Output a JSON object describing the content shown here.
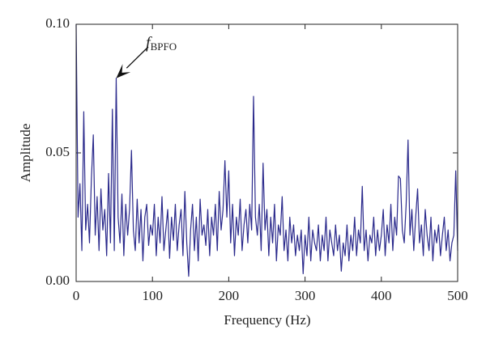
{
  "chart_data": {
    "type": "line",
    "xlabel": "Frequency (Hz)",
    "ylabel": "Amplitude",
    "xlim": [
      0,
      500
    ],
    "xticks": [
      0,
      100,
      200,
      300,
      400,
      500
    ],
    "ylim": [
      0,
      0.1
    ],
    "yticks": [
      {
        "value": 0,
        "label": "0.00"
      },
      {
        "value": 0.05,
        "label": "0.05"
      },
      {
        "value": 0.1,
        "label": "0.10"
      }
    ],
    "annotation": {
      "text": "f",
      "subscript": "BPFO",
      "x": 52.5,
      "y": 0.079
    },
    "x": [
      0,
      2.5,
      5,
      7.5,
      10,
      12.5,
      15,
      17.5,
      20,
      22.5,
      25,
      27.5,
      30,
      32.5,
      35,
      37.5,
      40,
      42.5,
      45,
      47.5,
      50,
      52.5,
      55,
      57.5,
      60,
      62.5,
      65,
      67.5,
      70,
      72.5,
      75,
      77.5,
      80,
      82.5,
      85,
      87.5,
      90,
      92.5,
      95,
      97.5,
      100,
      102.5,
      105,
      107.5,
      110,
      112.5,
      115,
      117.5,
      120,
      122.5,
      125,
      127.5,
      130,
      132.5,
      135,
      137.5,
      140,
      142.5,
      145,
      147.5,
      150,
      152.5,
      155,
      157.5,
      160,
      162.5,
      165,
      167.5,
      170,
      172.5,
      175,
      177.5,
      180,
      182.5,
      185,
      187.5,
      190,
      192.5,
      195,
      197.5,
      200,
      202.5,
      205,
      207.5,
      210,
      212.5,
      215,
      217.5,
      220,
      222.5,
      225,
      227.5,
      230,
      232.5,
      235,
      237.5,
      240,
      242.5,
      245,
      247.5,
      250,
      252.5,
      255,
      257.5,
      260,
      262.5,
      265,
      267.5,
      270,
      272.5,
      275,
      277.5,
      280,
      282.5,
      285,
      287.5,
      290,
      292.5,
      295,
      297.5,
      300,
      302.5,
      305,
      307.5,
      310,
      312.5,
      315,
      317.5,
      320,
      322.5,
      325,
      327.5,
      330,
      332.5,
      335,
      337.5,
      340,
      342.5,
      345,
      347.5,
      350,
      352.5,
      355,
      357.5,
      360,
      362.5,
      365,
      367.5,
      370,
      372.5,
      375,
      377.5,
      380,
      382.5,
      385,
      387.5,
      390,
      392.5,
      395,
      397.5,
      400,
      402.5,
      405,
      407.5,
      410,
      412.5,
      415,
      417.5,
      420,
      422.5,
      425,
      427.5,
      430,
      432.5,
      435,
      437.5,
      440,
      442.5,
      445,
      447.5,
      450,
      452.5,
      455,
      457.5,
      460,
      462.5,
      465,
      467.5,
      470,
      472.5,
      475,
      477.5,
      480,
      482.5,
      485,
      487.5,
      490,
      492.5,
      495,
      497.5,
      500
    ],
    "series": [
      {
        "color": "#2b2a8c",
        "values": [
          0.1,
          0.025,
          0.038,
          0.012,
          0.066,
          0.02,
          0.03,
          0.015,
          0.04,
          0.057,
          0.018,
          0.033,
          0.012,
          0.036,
          0.02,
          0.028,
          0.01,
          0.042,
          0.015,
          0.067,
          0.012,
          0.079,
          0.025,
          0.015,
          0.034,
          0.01,
          0.03,
          0.018,
          0.028,
          0.051,
          0.02,
          0.012,
          0.032,
          0.015,
          0.028,
          0.008,
          0.025,
          0.03,
          0.014,
          0.022,
          0.018,
          0.03,
          0.01,
          0.025,
          0.015,
          0.033,
          0.012,
          0.02,
          0.028,
          0.009,
          0.025,
          0.016,
          0.03,
          0.012,
          0.022,
          0.028,
          0.01,
          0.035,
          0.015,
          0.002,
          0.02,
          0.03,
          0.012,
          0.025,
          0.008,
          0.032,
          0.018,
          0.022,
          0.014,
          0.028,
          0.01,
          0.025,
          0.018,
          0.03,
          0.012,
          0.035,
          0.02,
          0.028,
          0.047,
          0.025,
          0.043,
          0.015,
          0.03,
          0.01,
          0.025,
          0.018,
          0.032,
          0.012,
          0.022,
          0.028,
          0.015,
          0.03,
          0.02,
          0.072,
          0.025,
          0.018,
          0.03,
          0.012,
          0.046,
          0.02,
          0.028,
          0.01,
          0.025,
          0.015,
          0.03,
          0.008,
          0.022,
          0.018,
          0.033,
          0.012,
          0.02,
          0.008,
          0.025,
          0.015,
          0.022,
          0.01,
          0.018,
          0.012,
          0.02,
          0.003,
          0.018,
          0.01,
          0.025,
          0.008,
          0.02,
          0.015,
          0.012,
          0.022,
          0.008,
          0.018,
          0.012,
          0.025,
          0.008,
          0.02,
          0.015,
          0.01,
          0.022,
          0.012,
          0.018,
          0.004,
          0.015,
          0.01,
          0.022,
          0.008,
          0.018,
          0.012,
          0.025,
          0.01,
          0.02,
          0.015,
          0.037,
          0.012,
          0.02,
          0.008,
          0.018,
          0.015,
          0.025,
          0.01,
          0.02,
          0.012,
          0.018,
          0.028,
          0.01,
          0.022,
          0.015,
          0.03,
          0.012,
          0.025,
          0.018,
          0.041,
          0.04,
          0.02,
          0.015,
          0.03,
          0.055,
          0.018,
          0.028,
          0.012,
          0.025,
          0.036,
          0.015,
          0.022,
          0.01,
          0.028,
          0.018,
          0.012,
          0.025,
          0.008,
          0.02,
          0.015,
          0.022,
          0.01,
          0.018,
          0.025,
          0.012,
          0.02,
          0.008,
          0.015,
          0.018,
          0.043,
          0.012
        ]
      }
    ]
  }
}
